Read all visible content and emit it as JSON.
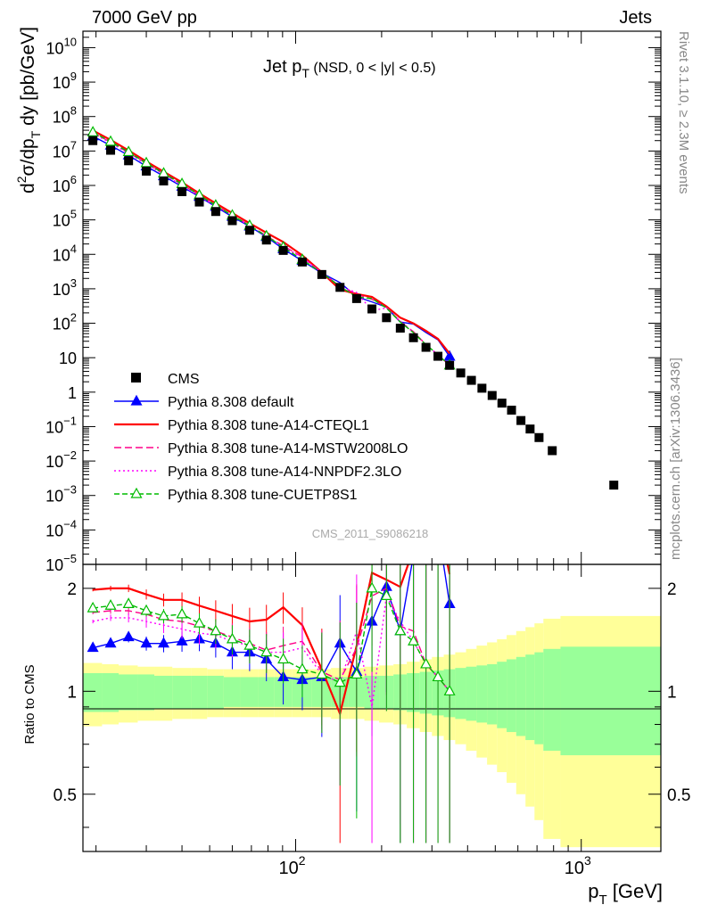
{
  "header": {
    "left": "7000 GeV pp",
    "right": "Jets"
  },
  "side_labels": {
    "rivet": "Rivet 3.1.10, ≥ 2.3M events",
    "mcplots": "mcplots.cern.ch [arXiv:1306.3436]"
  },
  "watermark": "CMS_2011_S9086218",
  "chart_data": {
    "type": "line",
    "title": "Jet p_T (NSD, 0 < |y| < 0.5)",
    "title_main": "Jet p",
    "title_sub": "T",
    "title_rest": " (NSD,   0 < |y| < 0.5)",
    "xlabel_main": "p",
    "xlabel_sub": "T",
    "xlabel_rest": " [GeV]",
    "ylabel": "d²σ/dp_T dy [pb/GeV]",
    "ylabel_parts": {
      "d": "d",
      "sup2": "2",
      "sigma": "σ/dp",
      "subT": "T",
      "rest": " dy [pb/GeV]"
    },
    "ratio_ylabel": "Ratio to CMS",
    "xscale": "log",
    "xlim": [
      18,
      1900
    ],
    "ylim": [
      1e-05,
      30000000000.0
    ],
    "ratio_ylim": [
      0.34,
      2.35
    ],
    "x_tick_labels": [
      {
        "value": 100,
        "base": "10",
        "exp": "2"
      },
      {
        "value": 1000,
        "base": "10",
        "exp": "3"
      }
    ],
    "y_tick_labels": [
      {
        "value": 10000000000.0,
        "base": "10",
        "exp": "10"
      },
      {
        "value": 1000000000.0,
        "base": "10",
        "exp": "9"
      },
      {
        "value": 100000000.0,
        "base": "10",
        "exp": "8"
      },
      {
        "value": 10000000.0,
        "base": "10",
        "exp": "7"
      },
      {
        "value": 1000000.0,
        "base": "10",
        "exp": "6"
      },
      {
        "value": 100000.0,
        "base": "10",
        "exp": "5"
      },
      {
        "value": 10000.0,
        "base": "10",
        "exp": "4"
      },
      {
        "value": 1000.0,
        "base": "10",
        "exp": "3"
      },
      {
        "value": 100,
        "base": "10",
        "exp": "2"
      },
      {
        "value": 10,
        "base": "10",
        "exp": ""
      },
      {
        "value": 1,
        "base": "1",
        "exp": ""
      },
      {
        "value": 0.1,
        "base": "10",
        "exp": "−1"
      },
      {
        "value": 0.01,
        "base": "10",
        "exp": "−2"
      },
      {
        "value": 0.001,
        "base": "10",
        "exp": "−3"
      },
      {
        "value": 0.0001,
        "base": "10",
        "exp": "−4"
      },
      {
        "value": 1e-05,
        "base": "10",
        "exp": "−5"
      }
    ],
    "ratio_tick_labels": [
      {
        "value": 0.5,
        "label": "0.5"
      },
      {
        "value": 1,
        "label": "1"
      },
      {
        "value": 2,
        "label": "2"
      }
    ],
    "legend_position": "bottom-left",
    "bin_edges": [
      18,
      21,
      24,
      28,
      32,
      37,
      43,
      49,
      56,
      64,
      74,
      84,
      97,
      114,
      133,
      153,
      174,
      196,
      220,
      245,
      272,
      300,
      330,
      362,
      395,
      430,
      468,
      507,
      548,
      592,
      638,
      686,
      737,
      846,
      1900
    ],
    "cms": {
      "name": "CMS",
      "x": [
        19.5,
        22.5,
        26,
        30,
        34.5,
        40,
        46,
        52.5,
        60,
        69,
        79,
        90.5,
        105.5,
        123.5,
        143,
        163.5,
        185,
        208,
        232.5,
        258.5,
        286,
        315,
        346,
        378.5,
        412.5,
        449,
        487.5,
        527.5,
        570,
        615,
        662,
        711.5,
        791.5,
        1300
      ],
      "y": [
        20000000.0,
        10500000.0,
        5200000.0,
        2600000.0,
        1350000.0,
        660000.0,
        330000.0,
        175000.0,
        95000.0,
        50000.0,
        26000.0,
        13000.0,
        6000.0,
        2600.0,
        1100.0,
        520.0,
        260.0,
        145.0,
        72,
        38,
        20,
        11,
        6.0,
        3.6,
        2.2,
        1.3,
        0.8,
        0.48,
        0.3,
        0.15,
        0.085,
        0.048,
        0.02,
        0.002
      ],
      "ratio_band_inner": [
        0.13,
        0.13,
        0.12,
        0.12,
        0.11,
        0.11,
        0.11,
        0.11,
        0.1,
        0.1,
        0.1,
        0.1,
        0.1,
        0.1,
        0.1,
        0.1,
        0.11,
        0.11,
        0.12,
        0.13,
        0.14,
        0.15,
        0.16,
        0.17,
        0.18,
        0.19,
        0.2,
        0.22,
        0.24,
        0.26,
        0.28,
        0.3,
        0.33,
        0.35
      ],
      "ratio_band_outer": [
        0.21,
        0.2,
        0.19,
        0.18,
        0.18,
        0.17,
        0.17,
        0.16,
        0.16,
        0.16,
        0.16,
        0.16,
        0.16,
        0.16,
        0.17,
        0.17,
        0.18,
        0.19,
        0.2,
        0.22,
        0.24,
        0.26,
        0.28,
        0.3,
        0.33,
        0.36,
        0.39,
        0.42,
        0.46,
        0.5,
        0.54,
        0.58,
        0.63,
        0.66
      ]
    },
    "series": [
      {
        "name": "Pythia 8.308 default",
        "color": "#0000ff",
        "dash": "",
        "marker": "triangle-filled",
        "ratio": [
          1.34,
          1.38,
          1.44,
          1.38,
          1.38,
          1.4,
          1.42,
          1.38,
          1.3,
          1.3,
          1.24,
          1.1,
          1.08,
          1.1,
          1.38,
          1.14,
          1.6,
          2.02,
          1.5,
          2.5,
          2.7,
          3.0,
          1.8
        ]
      },
      {
        "name": "Pythia 8.308 tune-A14-CTEQL1",
        "color": "#ff0000",
        "dash": "",
        "marker": "none",
        "ratio": [
          1.98,
          2.0,
          2.0,
          1.92,
          1.85,
          1.85,
          1.78,
          1.72,
          1.66,
          1.6,
          1.62,
          1.76,
          1.56,
          1.16,
          0.86,
          1.36,
          2.22,
          2.12,
          2.02,
          2.6,
          3.0,
          3.2,
          2.2
        ]
      },
      {
        "name": "Pythia 8.308 tune-A14-MSTW2008LO",
        "color": "#ff0088",
        "dash": "8,4",
        "marker": "none",
        "ratio": [
          1.7,
          1.72,
          1.72,
          1.68,
          1.62,
          1.6,
          1.55,
          1.5,
          1.44,
          1.38,
          1.32,
          1.36,
          1.4,
          1.14,
          1.08,
          1.34,
          1.9,
          2.0,
          1.55,
          1.5,
          1.2,
          1.1,
          1.0
        ]
      },
      {
        "name": "Pythia 8.308 tune-A14-NNPDF2.3LO",
        "color": "#ff00ff",
        "dash": "2,3",
        "marker": "none",
        "ratio": [
          1.6,
          1.64,
          1.64,
          1.6,
          1.56,
          1.52,
          1.48,
          1.46,
          1.4,
          1.36,
          1.3,
          1.3,
          1.34,
          1.12,
          1.06,
          1.5,
          0.9,
          1.9,
          1.6,
          1.4,
          1.2,
          1.1,
          1.0
        ]
      },
      {
        "name": "Pythia 8.308 tune-CUETP8S1",
        "color": "#00bb00",
        "dash": "6,3",
        "marker": "triangle-open",
        "ratio": [
          1.75,
          1.78,
          1.8,
          1.72,
          1.66,
          1.68,
          1.58,
          1.5,
          1.42,
          1.36,
          1.3,
          1.24,
          1.16,
          1.12,
          1.06,
          1.12,
          2.0,
          1.9,
          1.5,
          1.4,
          1.2,
          1.1,
          1.0
        ]
      }
    ]
  }
}
